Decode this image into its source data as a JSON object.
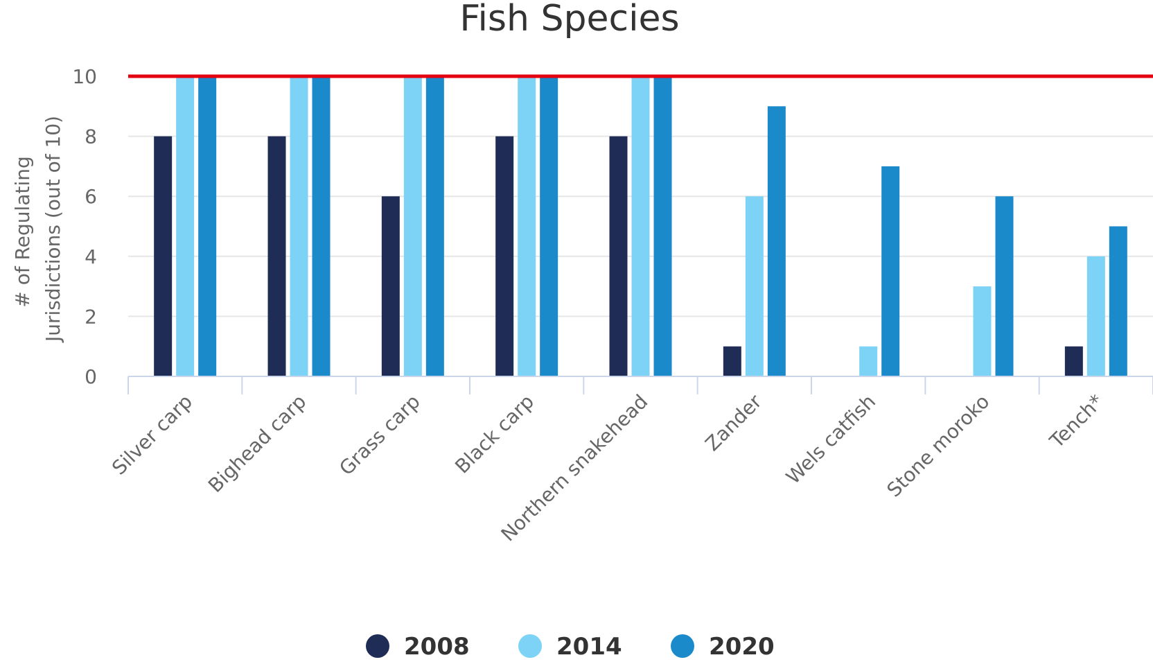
{
  "chart_data": {
    "type": "bar",
    "title": "Fish Species",
    "xlabel": "",
    "ylabel": "# of Regulating Jurisdictions (out of 10)",
    "ylabel_lines": [
      "# of Regulating",
      "Jurisdictions (out of 10)"
    ],
    "ylim": [
      0,
      10
    ],
    "yticks": [
      0,
      2,
      4,
      6,
      8,
      10
    ],
    "grid": true,
    "legend_position": "bottom",
    "reference_line": {
      "value": 10,
      "color": "#e3000f"
    },
    "categories": [
      "Silver carp",
      "Bighead carp",
      "Grass carp",
      "Black carp",
      "Northern snakehead",
      "Zander",
      "Wels catfish",
      "Stone moroko",
      "Tench*"
    ],
    "series": [
      {
        "name": "2008",
        "color": "#1f2d56",
        "values": [
          8,
          8,
          6,
          8,
          8,
          1,
          0,
          0,
          1
        ]
      },
      {
        "name": "2014",
        "color": "#7dd3f5",
        "values": [
          10,
          10,
          10,
          10,
          10,
          6,
          1,
          3,
          4
        ]
      },
      {
        "name": "2020",
        "color": "#1b8acb",
        "values": [
          10,
          10,
          10,
          10,
          10,
          9,
          7,
          6,
          5
        ]
      }
    ]
  }
}
